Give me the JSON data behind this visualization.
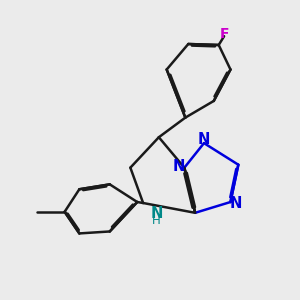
{
  "bg_color": "#ebebeb",
  "bond_color": "#1a1a1a",
  "N_color": "#0000dd",
  "NH_color": "#008888",
  "F_color": "#cc00cc",
  "lw": 1.8,
  "xlim": [
    0,
    10
  ],
  "ylim": [
    0,
    10
  ],
  "figsize": [
    3.0,
    3.0
  ],
  "dpi": 100
}
